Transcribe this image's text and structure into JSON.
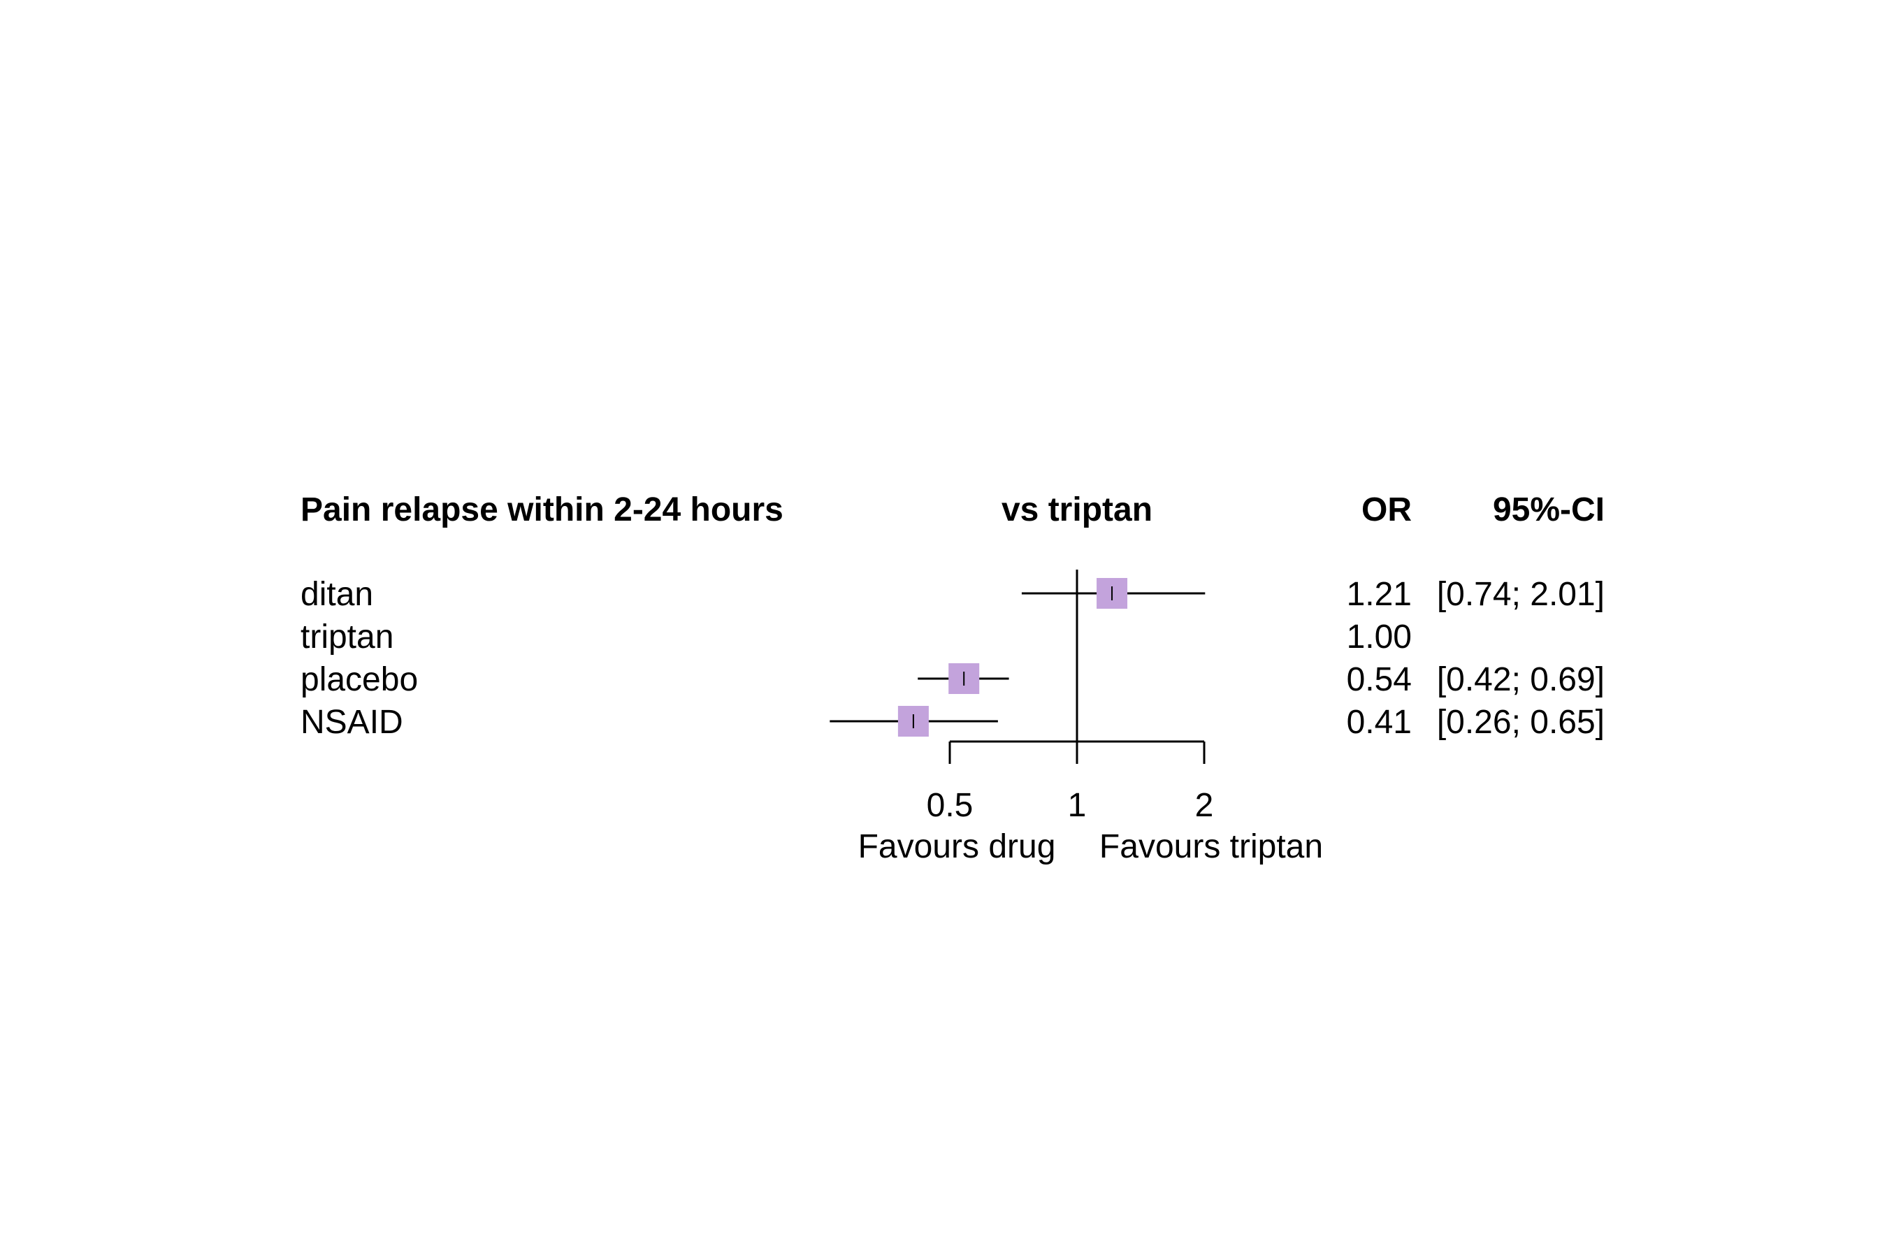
{
  "chart_data": {
    "type": "forest",
    "title": "Pain relapse within 2-24 hours",
    "comparison_header": "vs triptan",
    "effect_header": "OR",
    "ci_header": "95%-CI",
    "reference_value": 1,
    "x_scale": "log",
    "xlim": [
      0.5,
      2
    ],
    "x_ticks": [
      0.5,
      1,
      2
    ],
    "x_tick_labels": [
      "0.5",
      "1",
      "2"
    ],
    "favours_left": "Favours drug",
    "favours_right": "Favours triptan",
    "marker_color": "#c3a3dc",
    "rows": [
      {
        "label": "ditan",
        "or": 1.21,
        "lower": 0.74,
        "upper": 2.01,
        "or_text": "1.21",
        "ci_text": "[0.74; 2.01]"
      },
      {
        "label": "triptan",
        "or": 1.0,
        "lower": null,
        "upper": null,
        "or_text": "1.00",
        "ci_text": ""
      },
      {
        "label": "placebo",
        "or": 0.54,
        "lower": 0.42,
        "upper": 0.69,
        "or_text": "0.54",
        "ci_text": "[0.42; 0.69]"
      },
      {
        "label": "NSAID",
        "or": 0.41,
        "lower": 0.26,
        "upper": 0.65,
        "or_text": "0.41",
        "ci_text": "[0.26; 0.65]"
      }
    ]
  }
}
